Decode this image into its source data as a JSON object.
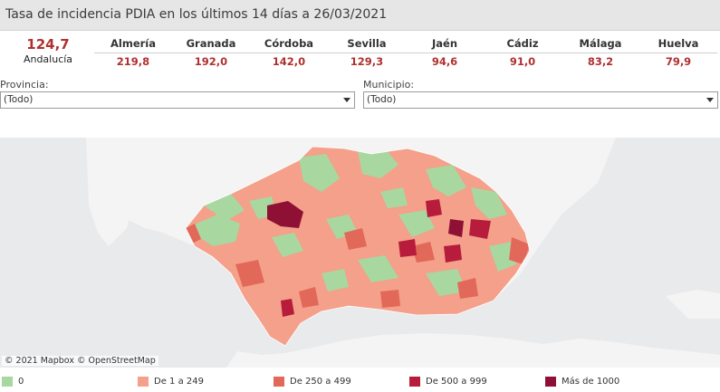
{
  "title": "Tasa de incidencia PDIA en los últimos 14 días a 26/03/2021",
  "total": {
    "value": "124,7",
    "label": "Andalucía"
  },
  "provinces": [
    {
      "name": "Almería",
      "value": "219,8"
    },
    {
      "name": "Granada",
      "value": "192,0"
    },
    {
      "name": "Córdoba",
      "value": "142,0"
    },
    {
      "name": "Sevilla",
      "value": "129,3"
    },
    {
      "name": "Jaén",
      "value": "94,6"
    },
    {
      "name": "Cádiz",
      "value": "91,0"
    },
    {
      "name": "Málaga",
      "value": "83,2"
    },
    {
      "name": "Huelva",
      "value": "79,9"
    }
  ],
  "filters": {
    "provincia": {
      "label": "Provincia:",
      "value": "(Todo)"
    },
    "municipio": {
      "label": "Municipio:",
      "value": "(Todo)"
    }
  },
  "map": {
    "attribution": "© 2021 Mapbox  © OpenStreetMap"
  },
  "legend": [
    {
      "label": "0",
      "color": "#a8d8a0"
    },
    {
      "label": "De 1 a 249",
      "color": "#f4a08a"
    },
    {
      "label": "De 250 a 499",
      "color": "#e2685a"
    },
    {
      "label": "De 500 a 999",
      "color": "#b81c3c"
    },
    {
      "label": "Más de 1000",
      "color": "#8e1035"
    }
  ],
  "colors": {
    "land": "#f4f4f4",
    "sea": "#e9eaec",
    "value_text": "#b03030"
  }
}
